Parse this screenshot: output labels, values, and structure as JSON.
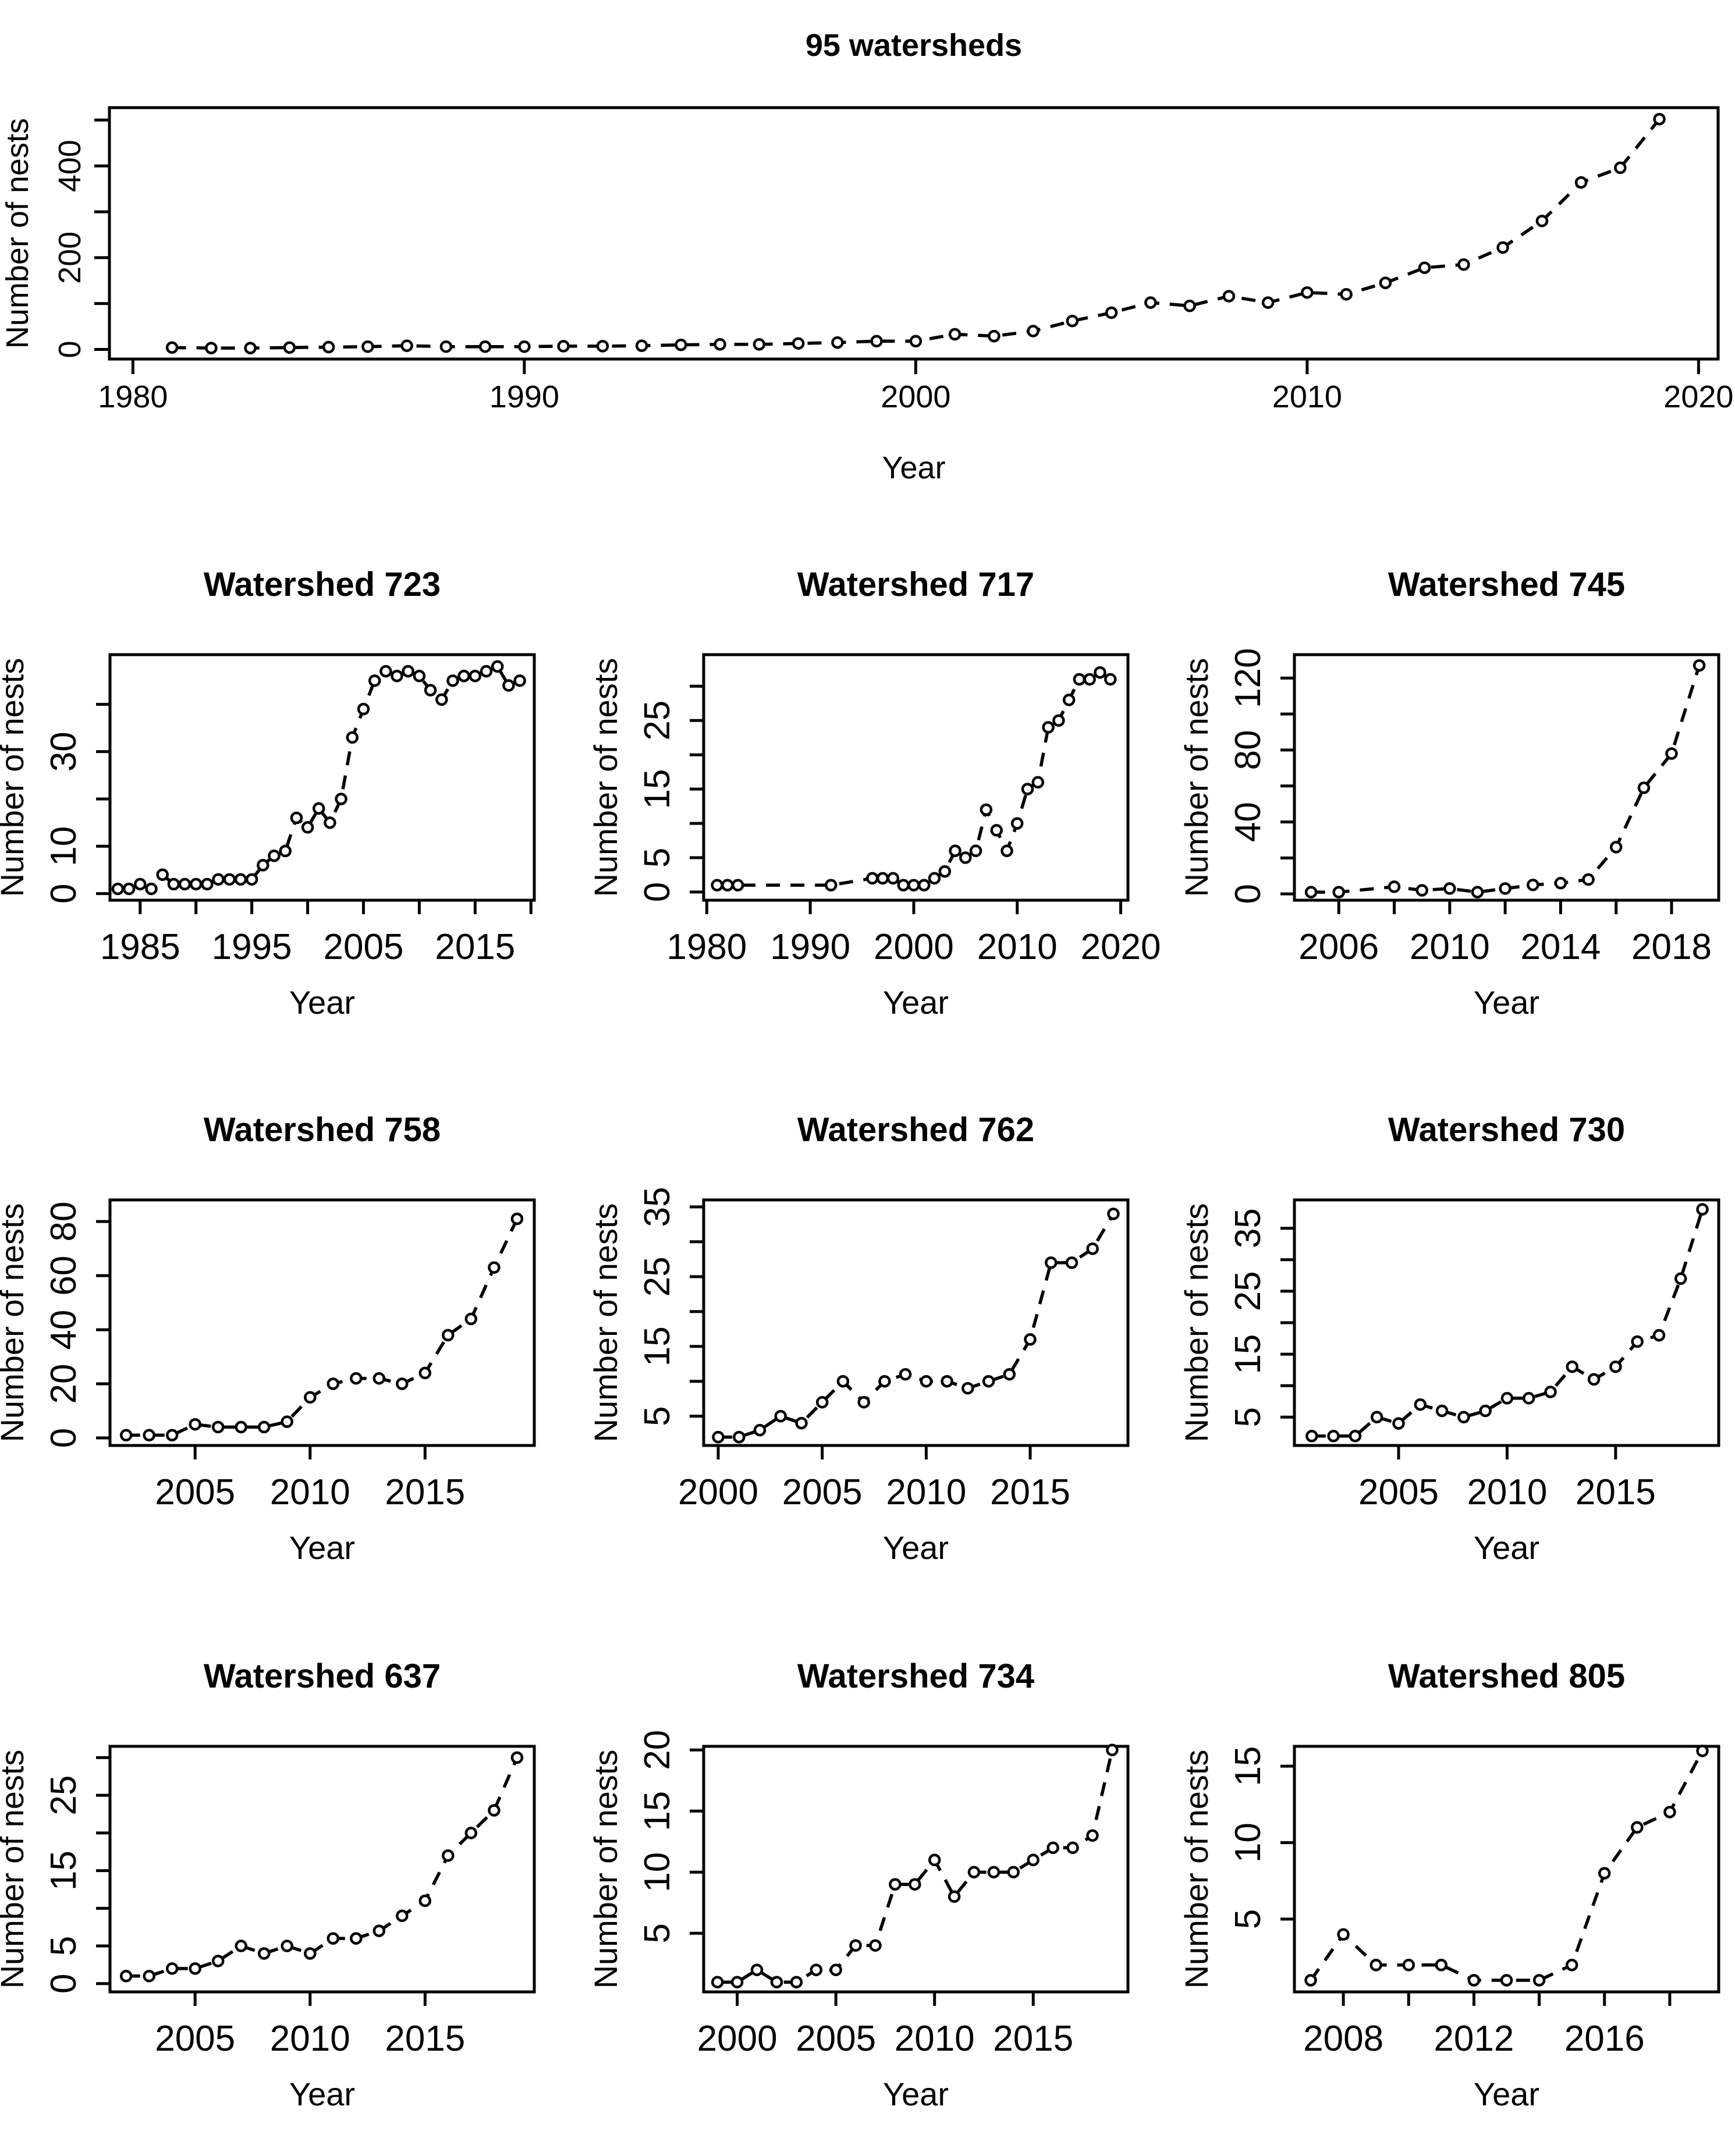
{
  "figure": {
    "background": "#ffffff",
    "ink_color": "#000000",
    "marker": "open-circle",
    "line_style": "dashed"
  },
  "chart_data": [
    {
      "id": "overall",
      "type": "scatter",
      "title": "95 watersheds",
      "xlabel": "Year",
      "ylabel": "Number of nests",
      "x": [
        1981,
        1982,
        1983,
        1984,
        1985,
        1986,
        1987,
        1988,
        1989,
        1990,
        1991,
        1992,
        1993,
        1994,
        1995,
        1996,
        1997,
        1998,
        1999,
        2000,
        2001,
        2002,
        2003,
        2004,
        2005,
        2006,
        2007,
        2008,
        2009,
        2010,
        2011,
        2012,
        2013,
        2014,
        2015,
        2016,
        2017,
        2018,
        2019
      ],
      "y": [
        4,
        3,
        3,
        4,
        5,
        6,
        8,
        6,
        6,
        6,
        7,
        7,
        8,
        10,
        11,
        11,
        13,
        15,
        18,
        18,
        33,
        29,
        40,
        62,
        80,
        102,
        95,
        116,
        102,
        124,
        120,
        145,
        178,
        185,
        222,
        280,
        364,
        396,
        502
      ],
      "xlim": [
        1979.4,
        2020.5
      ],
      "ylim": [
        -21,
        527
      ],
      "xticks": {
        "labeled": [
          1980,
          1990,
          2000,
          2010,
          2020
        ],
        "minor": []
      },
      "yticks": {
        "labeled": [
          0,
          200,
          400
        ],
        "minor": [
          100,
          300,
          500
        ]
      },
      "grid": false,
      "legend": null
    },
    {
      "id": "watershed-723",
      "type": "scatter",
      "title": "Watershed 723",
      "xlabel": "Year",
      "ylabel": "Number of nests",
      "x": [
        1983,
        1984,
        1985,
        1986,
        1987,
        1988,
        1989,
        1990,
        1991,
        1992,
        1993,
        1994,
        1995,
        1996,
        1997,
        1998,
        1999,
        2000,
        2001,
        2002,
        2003,
        2004,
        2005,
        2006,
        2007,
        2008,
        2009,
        2010,
        2011,
        2012,
        2013,
        2014,
        2015,
        2016,
        2017,
        2018,
        2019
      ],
      "y": [
        1,
        1,
        2,
        1,
        4,
        2,
        2,
        2,
        2,
        3,
        3,
        3,
        3,
        6,
        8,
        9,
        16,
        14,
        18,
        15,
        20,
        33,
        39,
        45,
        47,
        46,
        47,
        46,
        43,
        41,
        45,
        46,
        46,
        47,
        48,
        44,
        45
      ],
      "xlim": [
        1982.3,
        2020.3
      ],
      "ylim": [
        -1.4,
        50.5
      ],
      "xticks": {
        "labeled": [
          1985,
          1995,
          2005,
          2015
        ],
        "minor": [
          1990,
          2000,
          2010,
          2020
        ]
      },
      "yticks": {
        "labeled": [
          0,
          10,
          30
        ],
        "minor": [
          20,
          40
        ]
      },
      "grid": false,
      "legend": null
    },
    {
      "id": "watershed-717",
      "type": "scatter",
      "title": "Watershed 717",
      "xlabel": "Year",
      "ylabel": "Number of nests",
      "x": [
        1981,
        1982,
        1983,
        1992,
        1996,
        1997,
        1998,
        1999,
        2000,
        2001,
        2002,
        2003,
        2004,
        2005,
        2006,
        2007,
        2008,
        2009,
        2010,
        2011,
        2012,
        2013,
        2014,
        2015,
        2016,
        2017,
        2018,
        2019
      ],
      "y": [
        1,
        1,
        1,
        1,
        2,
        2,
        2,
        1,
        1,
        1,
        2,
        3,
        6,
        5,
        6,
        12,
        9,
        6,
        10,
        15,
        16,
        24,
        25,
        28,
        31,
        31,
        32,
        31
      ],
      "xlim": [
        1979.7,
        2020.7
      ],
      "ylim": [
        -1.2,
        34.6
      ],
      "xticks": {
        "labeled": [
          1980,
          1990,
          2000,
          2010,
          2020
        ],
        "minor": []
      },
      "yticks": {
        "labeled": [
          0,
          5,
          15,
          25
        ],
        "minor": [
          10,
          20,
          30
        ]
      },
      "grid": false,
      "legend": null
    },
    {
      "id": "watershed-745",
      "type": "scatter",
      "title": "Watershed 745",
      "xlabel": "Year",
      "ylabel": "Number of nests",
      "x": [
        2005,
        2006,
        2008,
        2009,
        2010,
        2011,
        2012,
        2013,
        2014,
        2015,
        2016,
        2017,
        2018,
        2019
      ],
      "y": [
        1,
        1,
        4,
        2,
        3,
        1,
        3,
        5,
        6,
        8,
        26,
        59,
        78,
        127
      ],
      "xlim": [
        2004.4,
        2019.7
      ],
      "ylim": [
        -3.5,
        133
      ],
      "xticks": {
        "labeled": [
          2006,
          2010,
          2014,
          2018
        ],
        "minor": [
          2008,
          2012,
          2016
        ]
      },
      "yticks": {
        "labeled": [
          0,
          40,
          80,
          120
        ],
        "minor": [
          20,
          60,
          100
        ]
      },
      "grid": false,
      "legend": null
    },
    {
      "id": "watershed-758",
      "type": "scatter",
      "title": "Watershed 758",
      "xlabel": "Year",
      "ylabel": "Number of nests",
      "x": [
        2002,
        2003,
        2004,
        2005,
        2006,
        2007,
        2008,
        2009,
        2010,
        2011,
        2012,
        2013,
        2014,
        2015,
        2016,
        2017,
        2018,
        2019
      ],
      "y": [
        1,
        1,
        1,
        5,
        4,
        4,
        4,
        6,
        15,
        20,
        22,
        22,
        20,
        24,
        38,
        44,
        63,
        81
      ],
      "xlim": [
        2001.3,
        2019.75
      ],
      "ylim": [
        -2.8,
        88
      ],
      "xticks": {
        "labeled": [
          2005,
          2010,
          2015
        ],
        "minor": []
      },
      "yticks": {
        "labeled": [
          0,
          20,
          40,
          60,
          80
        ],
        "minor": []
      },
      "grid": false,
      "legend": null
    },
    {
      "id": "watershed-762",
      "type": "scatter",
      "title": "Watershed 762",
      "xlabel": "Year",
      "ylabel": "Number of nests",
      "x": [
        2000,
        2001,
        2002,
        2003,
        2004,
        2005,
        2006,
        2007,
        2008,
        2009,
        2010,
        2011,
        2012,
        2013,
        2014,
        2015,
        2016,
        2017,
        2018,
        2019
      ],
      "y": [
        2,
        2,
        3,
        5,
        4,
        7,
        10,
        7,
        10,
        11,
        10,
        10,
        9,
        10,
        11,
        16,
        27,
        27,
        29,
        34
      ],
      "xlim": [
        1999.3,
        2019.7
      ],
      "ylim": [
        0.8,
        36
      ],
      "xticks": {
        "labeled": [
          2000,
          2005,
          2010,
          2015
        ],
        "minor": []
      },
      "yticks": {
        "labeled": [
          5,
          15,
          25,
          35
        ],
        "minor": [
          10,
          20,
          30
        ]
      },
      "grid": false,
      "legend": null
    },
    {
      "id": "watershed-730",
      "type": "scatter",
      "title": "Watershed 730",
      "xlabel": "Year",
      "ylabel": "Number of nests",
      "x": [
        2001,
        2002,
        2003,
        2004,
        2005,
        2006,
        2007,
        2008,
        2009,
        2010,
        2011,
        2012,
        2013,
        2014,
        2015,
        2016,
        2017,
        2018,
        2019
      ],
      "y": [
        2,
        2,
        2,
        5,
        4,
        7,
        6,
        5,
        6,
        8,
        8,
        9,
        13,
        11,
        13,
        17,
        18,
        27,
        38
      ],
      "xlim": [
        2000.2,
        2019.75
      ],
      "ylim": [
        0.5,
        39.5
      ],
      "xticks": {
        "labeled": [
          2005,
          2010,
          2015
        ],
        "minor": []
      },
      "yticks": {
        "labeled": [
          5,
          15,
          25,
          35
        ],
        "minor": [
          10,
          20,
          30
        ]
      },
      "grid": false,
      "legend": null
    },
    {
      "id": "watershed-637",
      "type": "scatter",
      "title": "Watershed 637",
      "xlabel": "Year",
      "ylabel": "Number of nests",
      "x": [
        2002,
        2003,
        2004,
        2005,
        2006,
        2007,
        2008,
        2009,
        2010,
        2011,
        2012,
        2013,
        2014,
        2015,
        2016,
        2017,
        2018,
        2019
      ],
      "y": [
        1,
        1,
        2,
        2,
        3,
        5,
        4,
        5,
        4,
        6,
        6,
        7,
        9,
        11,
        17,
        20,
        23,
        30
      ],
      "xlim": [
        2001.3,
        2019.75
      ],
      "ylim": [
        -1.1,
        31.5
      ],
      "xticks": {
        "labeled": [
          2005,
          2010,
          2015
        ],
        "minor": []
      },
      "yticks": {
        "labeled": [
          0,
          5,
          15,
          25
        ],
        "minor": [
          10,
          20,
          30
        ]
      },
      "grid": false,
      "legend": null
    },
    {
      "id": "watershed-734",
      "type": "scatter",
      "title": "Watershed 734",
      "xlabel": "Year",
      "ylabel": "Number of nests",
      "x": [
        1999,
        2000,
        2001,
        2002,
        2003,
        2004,
        2005,
        2006,
        2007,
        2008,
        2009,
        2010,
        2011,
        2012,
        2013,
        2014,
        2015,
        2016,
        2017,
        2018,
        2019
      ],
      "y": [
        1,
        1,
        2,
        1,
        1,
        2,
        2,
        4,
        4,
        9,
        9,
        11,
        8,
        10,
        10,
        10,
        11,
        12,
        12,
        13,
        20
      ],
      "xlim": [
        1998.3,
        2019.8
      ],
      "ylim": [
        0.2,
        20.3
      ],
      "xticks": {
        "labeled": [
          2000,
          2005,
          2010,
          2015
        ],
        "minor": []
      },
      "yticks": {
        "labeled": [
          5,
          10,
          15,
          20
        ],
        "minor": []
      },
      "grid": false,
      "legend": null
    },
    {
      "id": "watershed-805",
      "type": "scatter",
      "title": "Watershed 805",
      "xlabel": "Year",
      "ylabel": "Number of nests",
      "x": [
        2007,
        2008,
        2009,
        2010,
        2011,
        2012,
        2013,
        2014,
        2015,
        2016,
        2017,
        2018,
        2019
      ],
      "y": [
        1,
        4,
        2,
        2,
        2,
        1,
        1,
        1,
        2,
        8,
        11,
        12,
        16
      ],
      "xlim": [
        2006.5,
        2019.5
      ],
      "ylim": [
        0.24,
        16.3
      ],
      "xticks": {
        "labeled": [
          2008,
          2012,
          2016
        ],
        "minor": [
          2010,
          2014,
          2018
        ]
      },
      "yticks": {
        "labeled": [
          5,
          10,
          15
        ],
        "minor": []
      },
      "grid": false,
      "legend": null
    }
  ]
}
